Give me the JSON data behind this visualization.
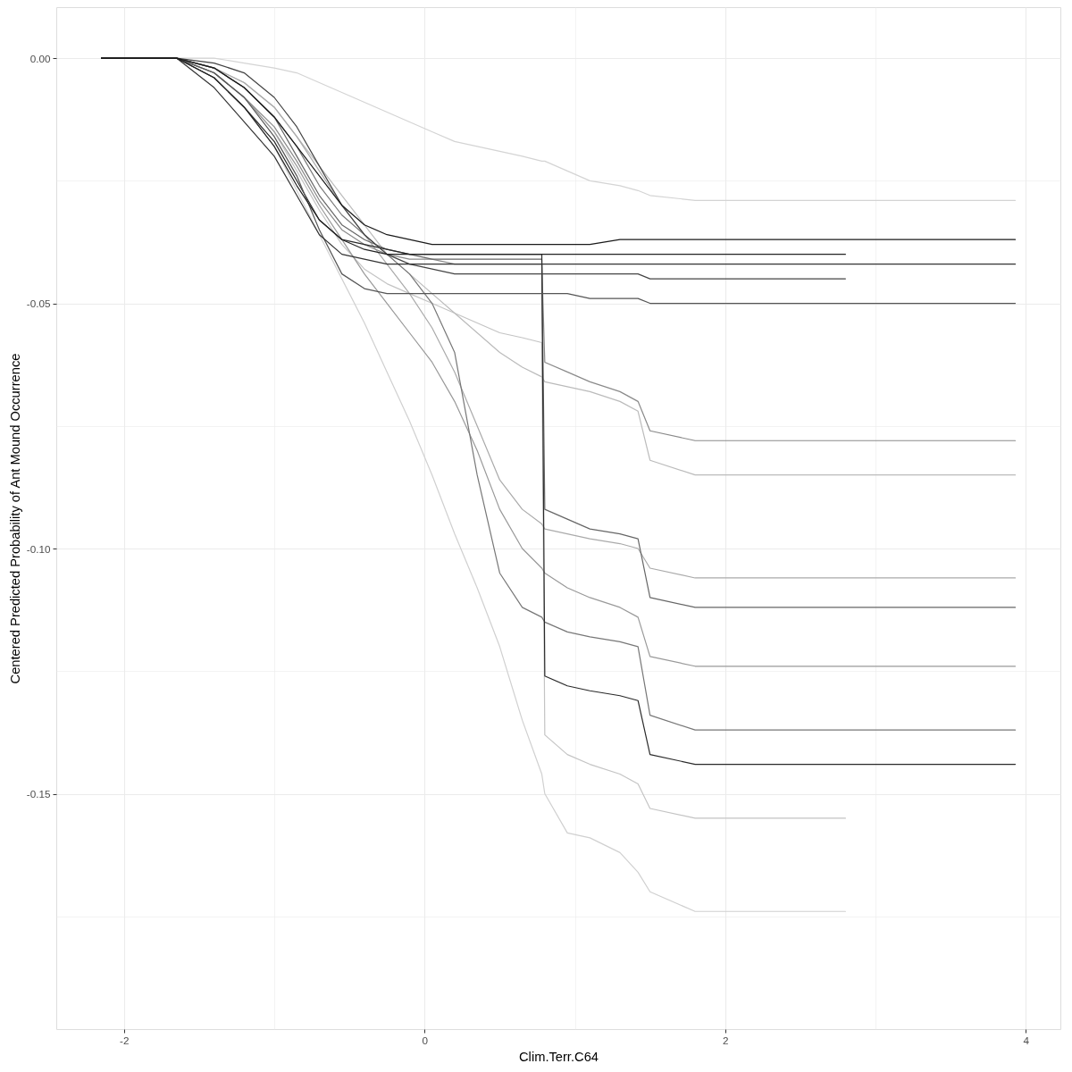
{
  "chart_data": {
    "type": "line",
    "xlabel": "Clim.Terr.C64",
    "ylabel": "Centered Predicted Probability of Ant Mound Occurrence",
    "x": [
      -2.15,
      -1.65,
      -1.4,
      -1.2,
      -1.0,
      -0.85,
      -0.7,
      -0.55,
      -0.4,
      -0.25,
      -0.1,
      0.05,
      0.2,
      0.35,
      0.5,
      0.65,
      0.78,
      0.8,
      0.95,
      1.1,
      1.3,
      1.42,
      1.5,
      1.8,
      2.2,
      2.8,
      3.93
    ],
    "xlim": [
      -2.45,
      4.23
    ],
    "ylim": [
      -0.198,
      0.0104
    ],
    "xticks": [
      -2,
      {
        "value": -1,
        "label": null
      },
      0,
      {
        "value": 1,
        "label": null
      },
      2,
      {
        "value": 3,
        "label": null
      },
      4
    ],
    "yticks": [
      {
        "value": 0,
        "label": "0.00"
      },
      {
        "value": -0.025,
        "label": null
      },
      {
        "value": -0.05,
        "label": "-0.05"
      },
      {
        "value": -0.075,
        "label": null
      },
      {
        "value": -0.1,
        "label": "-0.10"
      },
      {
        "value": -0.125,
        "label": null
      },
      {
        "value": -0.15,
        "label": "-0.15"
      },
      {
        "value": -0.175,
        "label": null
      }
    ],
    "grid": true,
    "line_style": "solid",
    "series": [
      {
        "color": "#d4d4d4",
        "values": [
          0,
          0,
          0,
          -0.001,
          -0.002,
          -0.003,
          -0.005,
          -0.007,
          -0.009,
          -0.011,
          -0.013,
          -0.015,
          -0.017,
          -0.018,
          -0.019,
          -0.02,
          -0.021,
          -0.021,
          -0.023,
          -0.025,
          -0.026,
          -0.027,
          -0.028,
          -0.029,
          -0.029,
          -0.029,
          -0.029
        ]
      },
      {
        "color": "#d0d0d0",
        "values": [
          0,
          0,
          -0.004,
          -0.01,
          -0.018,
          -0.027,
          -0.036,
          -0.045,
          -0.054,
          -0.064,
          -0.074,
          -0.085,
          -0.097,
          -0.108,
          -0.12,
          -0.135,
          -0.146,
          -0.15,
          -0.158,
          -0.159,
          -0.162,
          -0.166,
          -0.17,
          -0.174,
          -0.174,
          -0.174,
          null
        ]
      },
      {
        "color": "#c4c4c4",
        "values": [
          0,
          0,
          -0.003,
          -0.008,
          -0.015,
          -0.023,
          -0.031,
          -0.038,
          -0.043,
          -0.046,
          -0.048,
          -0.05,
          -0.052,
          -0.054,
          -0.056,
          -0.057,
          -0.058,
          -0.138,
          -0.142,
          -0.144,
          -0.146,
          -0.148,
          -0.153,
          -0.155,
          -0.155,
          -0.155,
          null
        ]
      },
      {
        "color": "#bbbbbb",
        "values": [
          0,
          0,
          -0.002,
          -0.005,
          -0.01,
          -0.016,
          -0.022,
          -0.028,
          -0.034,
          -0.04,
          -0.044,
          -0.048,
          -0.052,
          -0.056,
          -0.06,
          -0.063,
          -0.065,
          -0.066,
          -0.067,
          -0.068,
          -0.07,
          -0.072,
          -0.082,
          -0.085,
          -0.085,
          -0.085,
          -0.085
        ]
      },
      {
        "color": "#aaaaaa",
        "values": [
          0,
          0,
          -0.002,
          -0.005,
          -0.01,
          -0.016,
          -0.023,
          -0.03,
          -0.036,
          -0.042,
          -0.048,
          -0.055,
          -0.064,
          -0.075,
          -0.086,
          -0.092,
          -0.095,
          -0.096,
          -0.097,
          -0.098,
          -0.099,
          -0.1,
          -0.104,
          -0.106,
          -0.106,
          -0.106,
          -0.106
        ]
      },
      {
        "color": "#999999",
        "values": [
          0,
          0,
          -0.003,
          -0.008,
          -0.015,
          -0.022,
          -0.03,
          -0.037,
          -0.044,
          -0.05,
          -0.056,
          -0.062,
          -0.07,
          -0.08,
          -0.092,
          -0.1,
          -0.104,
          -0.105,
          -0.108,
          -0.11,
          -0.112,
          -0.114,
          -0.122,
          -0.124,
          -0.124,
          -0.124,
          -0.124
        ]
      },
      {
        "color": "#777777",
        "values": [
          0,
          0,
          -0.002,
          -0.006,
          -0.012,
          -0.018,
          -0.026,
          -0.032,
          -0.036,
          -0.04,
          -0.044,
          -0.05,
          -0.06,
          -0.085,
          -0.105,
          -0.112,
          -0.114,
          -0.115,
          -0.117,
          -0.118,
          -0.119,
          -0.12,
          -0.134,
          -0.137,
          -0.137,
          -0.137,
          -0.137
        ]
      },
      {
        "color": "#8a8a8a",
        "values": [
          0,
          0,
          -0.003,
          -0.008,
          -0.014,
          -0.021,
          -0.029,
          -0.035,
          -0.038,
          -0.04,
          -0.041,
          -0.041,
          -0.042,
          -0.042,
          -0.042,
          -0.042,
          -0.042,
          -0.062,
          -0.064,
          -0.066,
          -0.068,
          -0.07,
          -0.076,
          -0.078,
          -0.078,
          -0.078,
          -0.078
        ]
      },
      {
        "color": "#666666",
        "values": [
          0,
          0,
          -0.002,
          -0.006,
          -0.012,
          -0.02,
          -0.028,
          -0.034,
          -0.037,
          -0.039,
          -0.04,
          -0.041,
          -0.041,
          -0.041,
          -0.041,
          -0.041,
          -0.041,
          -0.092,
          -0.094,
          -0.096,
          -0.097,
          -0.098,
          -0.11,
          -0.112,
          -0.112,
          -0.112,
          -0.112
        ]
      },
      {
        "color": "#2a2a2a",
        "values": [
          0,
          0,
          -0.004,
          -0.01,
          -0.017,
          -0.025,
          -0.033,
          -0.037,
          -0.038,
          -0.039,
          -0.04,
          -0.04,
          -0.04,
          -0.04,
          -0.04,
          -0.04,
          -0.04,
          -0.126,
          -0.128,
          -0.129,
          -0.13,
          -0.131,
          -0.142,
          -0.144,
          -0.144,
          -0.144,
          -0.144
        ]
      },
      {
        "color": "#555555",
        "values": [
          0,
          0,
          -0.003,
          -0.008,
          -0.016,
          -0.024,
          -0.035,
          -0.044,
          -0.047,
          -0.048,
          -0.048,
          -0.048,
          -0.048,
          -0.048,
          -0.048,
          -0.048,
          -0.048,
          -0.048,
          -0.048,
          -0.049,
          -0.049,
          -0.049,
          -0.05,
          -0.05,
          -0.05,
          -0.05,
          -0.05
        ]
      },
      {
        "color": "#444444",
        "values": [
          0,
          0,
          -0.001,
          -0.003,
          -0.008,
          -0.014,
          -0.022,
          -0.03,
          -0.036,
          -0.04,
          -0.042,
          -0.043,
          -0.044,
          -0.044,
          -0.044,
          -0.044,
          -0.044,
          -0.044,
          -0.044,
          -0.044,
          -0.044,
          -0.044,
          -0.045,
          -0.045,
          -0.045,
          -0.045,
          null
        ]
      },
      {
        "color": "#333333",
        "values": [
          0,
          0,
          -0.006,
          -0.013,
          -0.02,
          -0.028,
          -0.036,
          -0.04,
          -0.041,
          -0.042,
          -0.042,
          -0.042,
          -0.042,
          -0.042,
          -0.042,
          -0.042,
          -0.042,
          -0.042,
          -0.042,
          -0.042,
          -0.042,
          -0.042,
          -0.042,
          -0.042,
          -0.042,
          -0.042,
          -0.042
        ]
      },
      {
        "color": "#222222",
        "values": [
          0,
          0,
          -0.004,
          -0.01,
          -0.018,
          -0.026,
          -0.033,
          -0.037,
          -0.039,
          -0.04,
          -0.04,
          -0.04,
          -0.04,
          -0.04,
          -0.04,
          -0.04,
          -0.04,
          -0.04,
          -0.04,
          -0.04,
          -0.04,
          -0.04,
          -0.04,
          -0.04,
          -0.04,
          -0.04,
          null
        ]
      },
      {
        "color": "#1a1a1a",
        "values": [
          0,
          0,
          -0.002,
          -0.006,
          -0.012,
          -0.018,
          -0.024,
          -0.03,
          -0.034,
          -0.036,
          -0.037,
          -0.038,
          -0.038,
          -0.038,
          -0.038,
          -0.038,
          -0.038,
          -0.038,
          -0.038,
          -0.038,
          -0.037,
          -0.037,
          -0.037,
          -0.037,
          -0.037,
          -0.037,
          -0.037
        ]
      }
    ]
  }
}
